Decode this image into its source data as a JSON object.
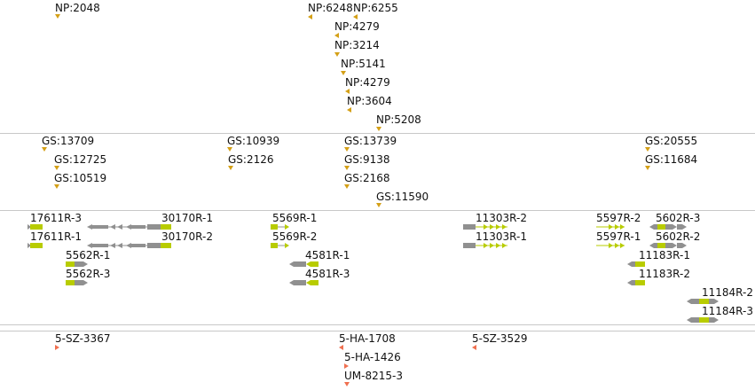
{
  "tracks": {
    "np": [
      {
        "label": "NP:2048"
      },
      {
        "label": "NP:6248"
      },
      {
        "label": "NP:6255"
      },
      {
        "label": "NP:4279"
      },
      {
        "label": "NP:3214"
      },
      {
        "label": "NP:5141"
      },
      {
        "label": "NP:4279"
      },
      {
        "label": "NP:3604"
      },
      {
        "label": "NP:5208"
      }
    ],
    "gs": [
      {
        "label": "GS:13709"
      },
      {
        "label": "GS:12725"
      },
      {
        "label": "GS:10519"
      },
      {
        "label": "GS:10939"
      },
      {
        "label": "GS:2126"
      },
      {
        "label": "GS:13739"
      },
      {
        "label": "GS:9138"
      },
      {
        "label": "GS:2168"
      },
      {
        "label": "GS:11590"
      },
      {
        "label": "GS:20555"
      },
      {
        "label": "GS:11684"
      }
    ],
    "genes": [
      {
        "label": "17611R-3"
      },
      {
        "label": "17611R-1"
      },
      {
        "label": "30170R-1"
      },
      {
        "label": "30170R-2"
      },
      {
        "label": "5562R-1"
      },
      {
        "label": "5562R-3"
      },
      {
        "label": "5569R-1"
      },
      {
        "label": "5569R-2"
      },
      {
        "label": "4581R-1"
      },
      {
        "label": "4581R-3"
      },
      {
        "label": "11303R-2"
      },
      {
        "label": "11303R-1"
      },
      {
        "label": "5597R-2"
      },
      {
        "label": "5602R-3"
      },
      {
        "label": "5597R-1"
      },
      {
        "label": "5602R-2"
      },
      {
        "label": "11183R-1"
      },
      {
        "label": "11183R-2"
      },
      {
        "label": "11184R-2"
      },
      {
        "label": "11184R-3"
      }
    ],
    "other": [
      {
        "label": "5-SZ-3367"
      },
      {
        "label": "5-HA-1708"
      },
      {
        "label": "5-SZ-3529"
      },
      {
        "label": "5-HA-1426"
      },
      {
        "label": "UM-8215-3"
      }
    ]
  },
  "colors": {
    "marker_orange": "#d4a017",
    "marker_red": "#f07050",
    "exon_green": "#b8cc00",
    "intron_gray": "#909090"
  }
}
